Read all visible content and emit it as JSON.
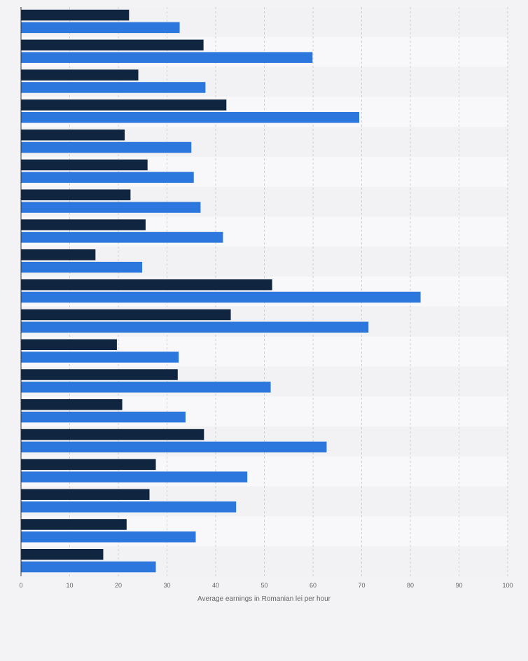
{
  "chart_data": {
    "type": "bar",
    "orientation": "horizontal",
    "categories": [
      "",
      "",
      "",
      "",
      "",
      "",
      "",
      "",
      "",
      "",
      "",
      "",
      "",
      "",
      "",
      "",
      "",
      "",
      ""
    ],
    "series": [
      {
        "color": "#0f2540",
        "values": [
          22.2,
          37.5,
          24.1,
          42.2,
          21.3,
          26.0,
          22.5,
          25.6,
          15.3,
          51.6,
          43.1,
          19.7,
          32.2,
          20.8,
          37.6,
          27.7,
          26.4,
          21.7,
          16.9
        ]
      },
      {
        "color": "#2b77dd",
        "values": [
          32.6,
          59.9,
          37.9,
          69.5,
          35.0,
          35.5,
          36.9,
          41.5,
          24.9,
          82.1,
          71.4,
          32.4,
          51.3,
          33.8,
          62.8,
          46.5,
          44.2,
          35.9,
          27.7
        ]
      }
    ],
    "xlabel": "Average earnings in Romanian lei per hour",
    "xlim": [
      0,
      100
    ],
    "xticks": [
      0,
      10,
      20,
      30,
      40,
      50,
      60,
      70,
      80,
      90,
      100
    ],
    "grid": true,
    "legend": "none"
  }
}
